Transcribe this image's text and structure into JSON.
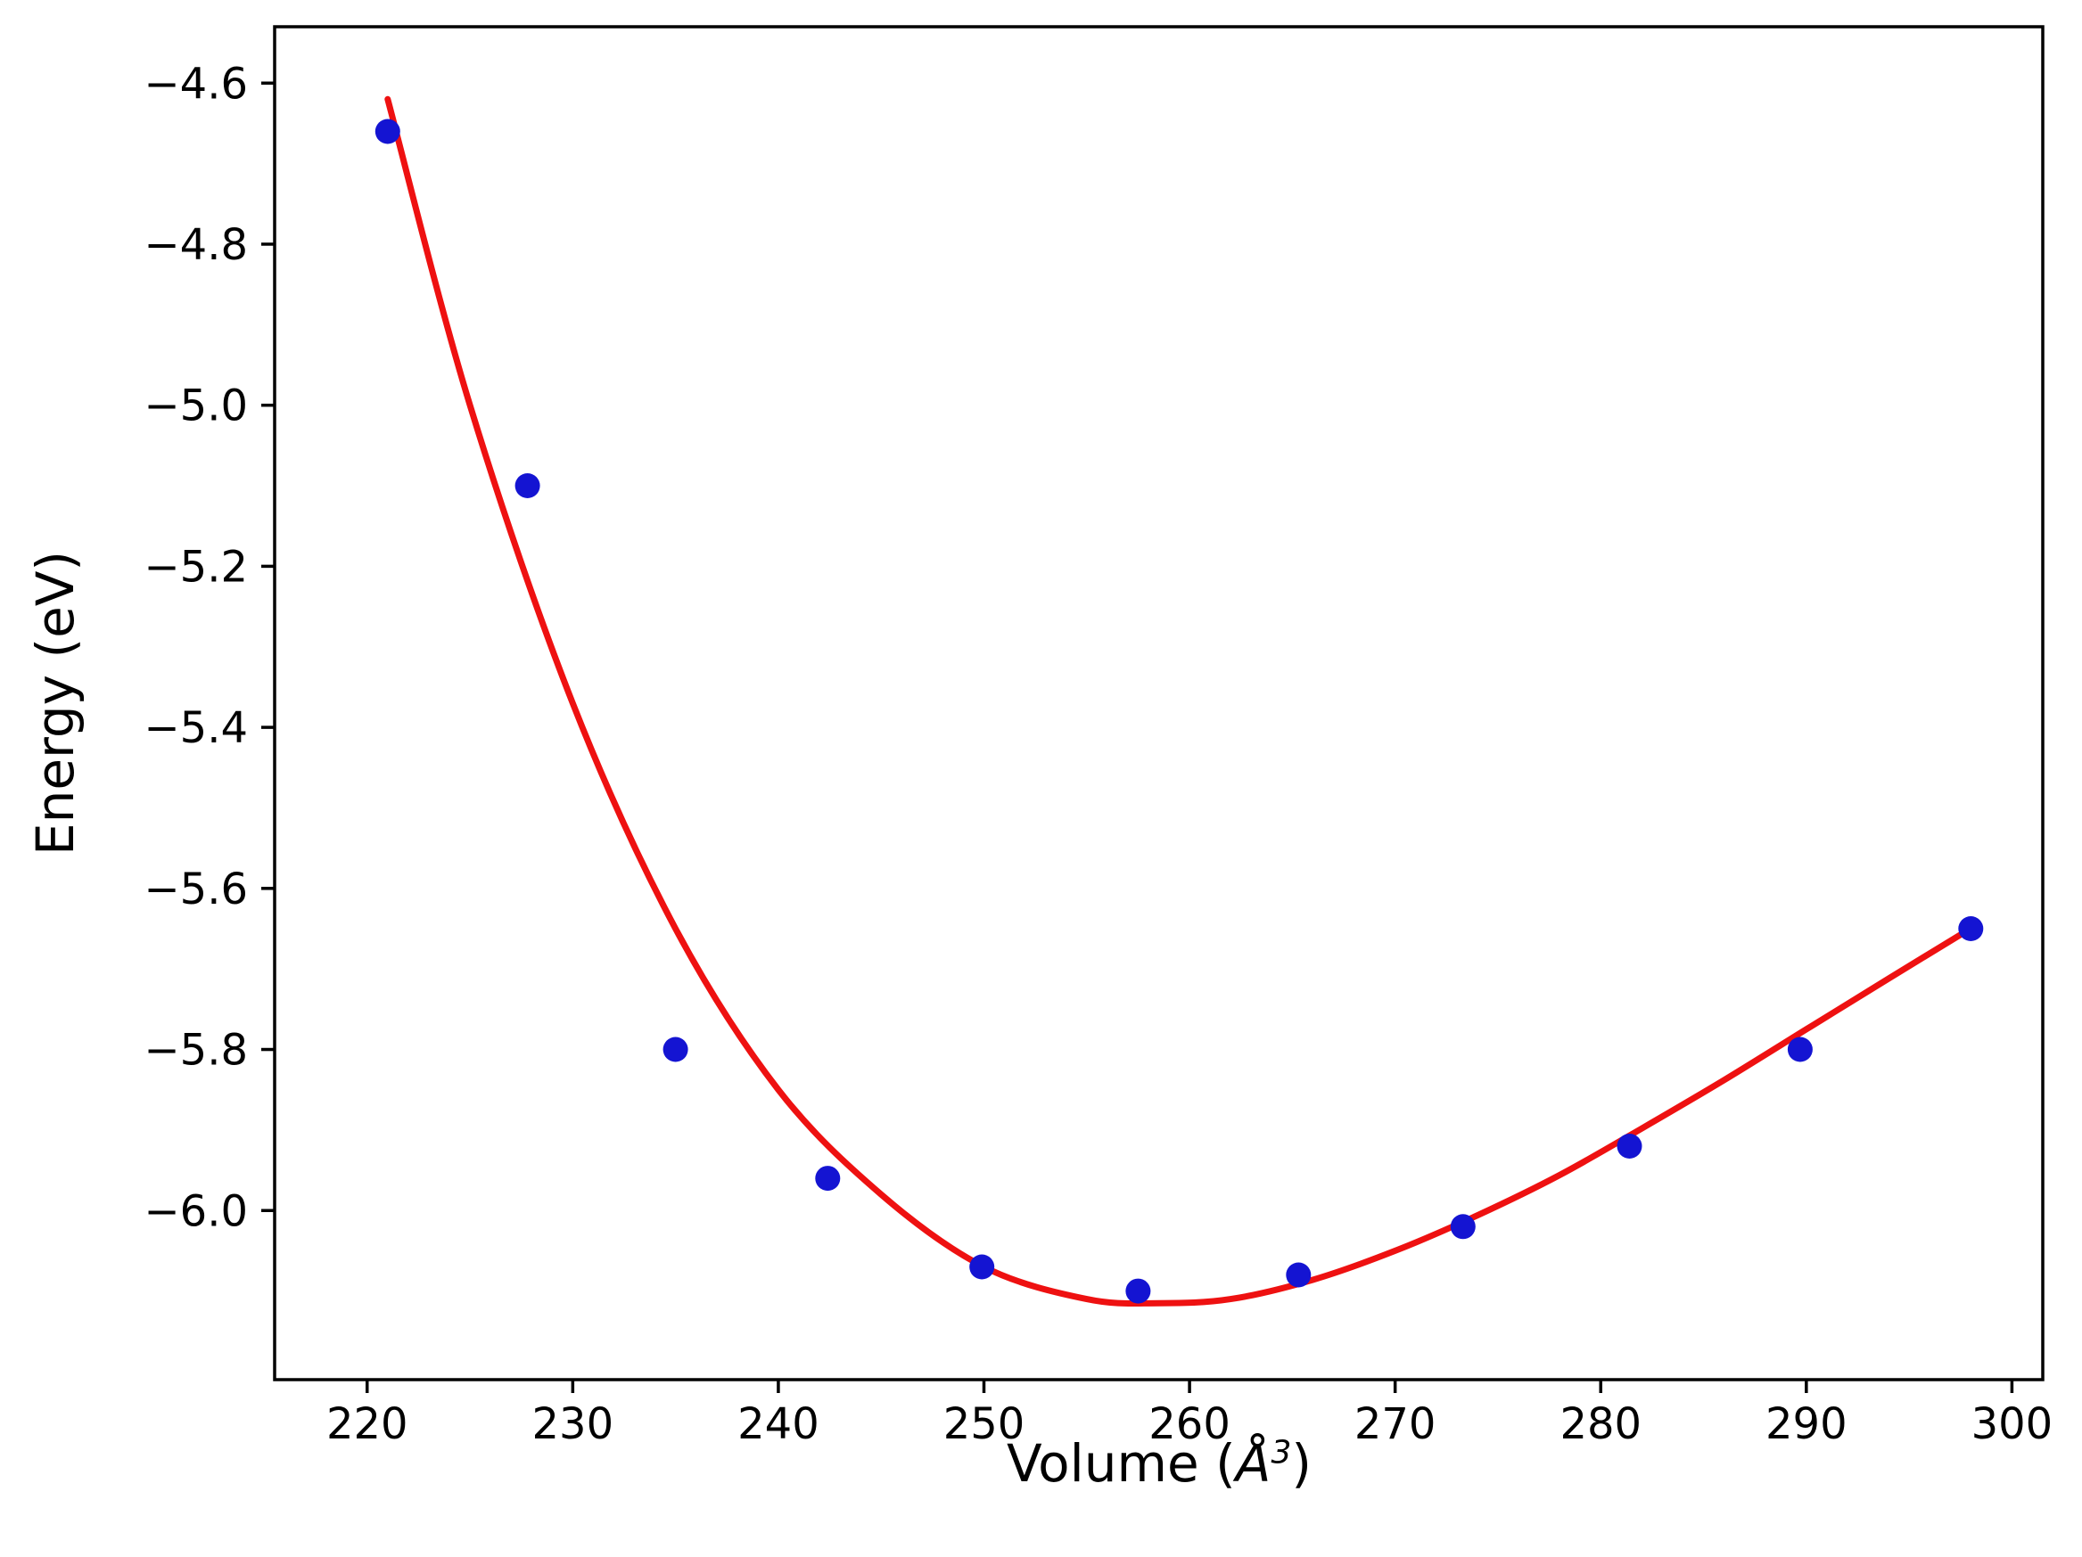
{
  "figure": {
    "background": "#ffffff"
  },
  "chart_data": {
    "type": "scatter",
    "xlabel": "Volume (Å³)",
    "xlabel_parts": {
      "prefix": "Volume (",
      "symbol": "Å",
      "exponent": "3",
      "suffix": ")"
    },
    "ylabel": "Energy (eV)",
    "xlim": [
      215.5,
      301.5
    ],
    "ylim": [
      -6.21,
      -4.53
    ],
    "grid": false,
    "legend_position": "none",
    "axis_color": "#000000",
    "x_ticks": [
      220,
      230,
      240,
      250,
      260,
      270,
      280,
      290,
      300
    ],
    "x_tick_labels": [
      "220",
      "230",
      "240",
      "250",
      "260",
      "270",
      "280",
      "290",
      "300"
    ],
    "y_ticks": [
      -4.6,
      -4.8,
      -5.0,
      -5.2,
      -5.4,
      -5.6,
      -5.8,
      -6.0
    ],
    "y_tick_labels": [
      "−4.6",
      "−4.8",
      "−5.0",
      "−5.2",
      "−5.4",
      "−5.6",
      "−5.8",
      "−6.0"
    ],
    "series": [
      {
        "name": "energy-points",
        "type": "scatter",
        "color": "#1414d2",
        "marker": "circle",
        "x": [
          221.0,
          227.8,
          235.0,
          242.4,
          249.9,
          257.5,
          265.3,
          273.3,
          281.4,
          289.7,
          298.0
        ],
        "y": [
          -4.66,
          -5.1,
          -5.8,
          -5.96,
          -6.07,
          -6.1,
          -6.08,
          -6.02,
          -5.92,
          -5.8,
          -5.65
        ]
      },
      {
        "name": "eos-fit",
        "type": "line",
        "color": "#ee1111",
        "x": [
          221,
          225,
          230,
          235,
          240,
          245,
          250,
          255,
          258.5,
          262,
          266,
          270,
          274,
          278,
          282,
          286,
          290,
          294,
          298.3
        ],
        "y": [
          -4.62,
          -5.0,
          -5.37,
          -5.65,
          -5.85,
          -5.98,
          -6.07,
          -6.11,
          -6.115,
          -6.11,
          -6.086,
          -6.05,
          -6.006,
          -5.956,
          -5.898,
          -5.838,
          -5.775,
          -5.712,
          -5.645
        ]
      }
    ]
  }
}
